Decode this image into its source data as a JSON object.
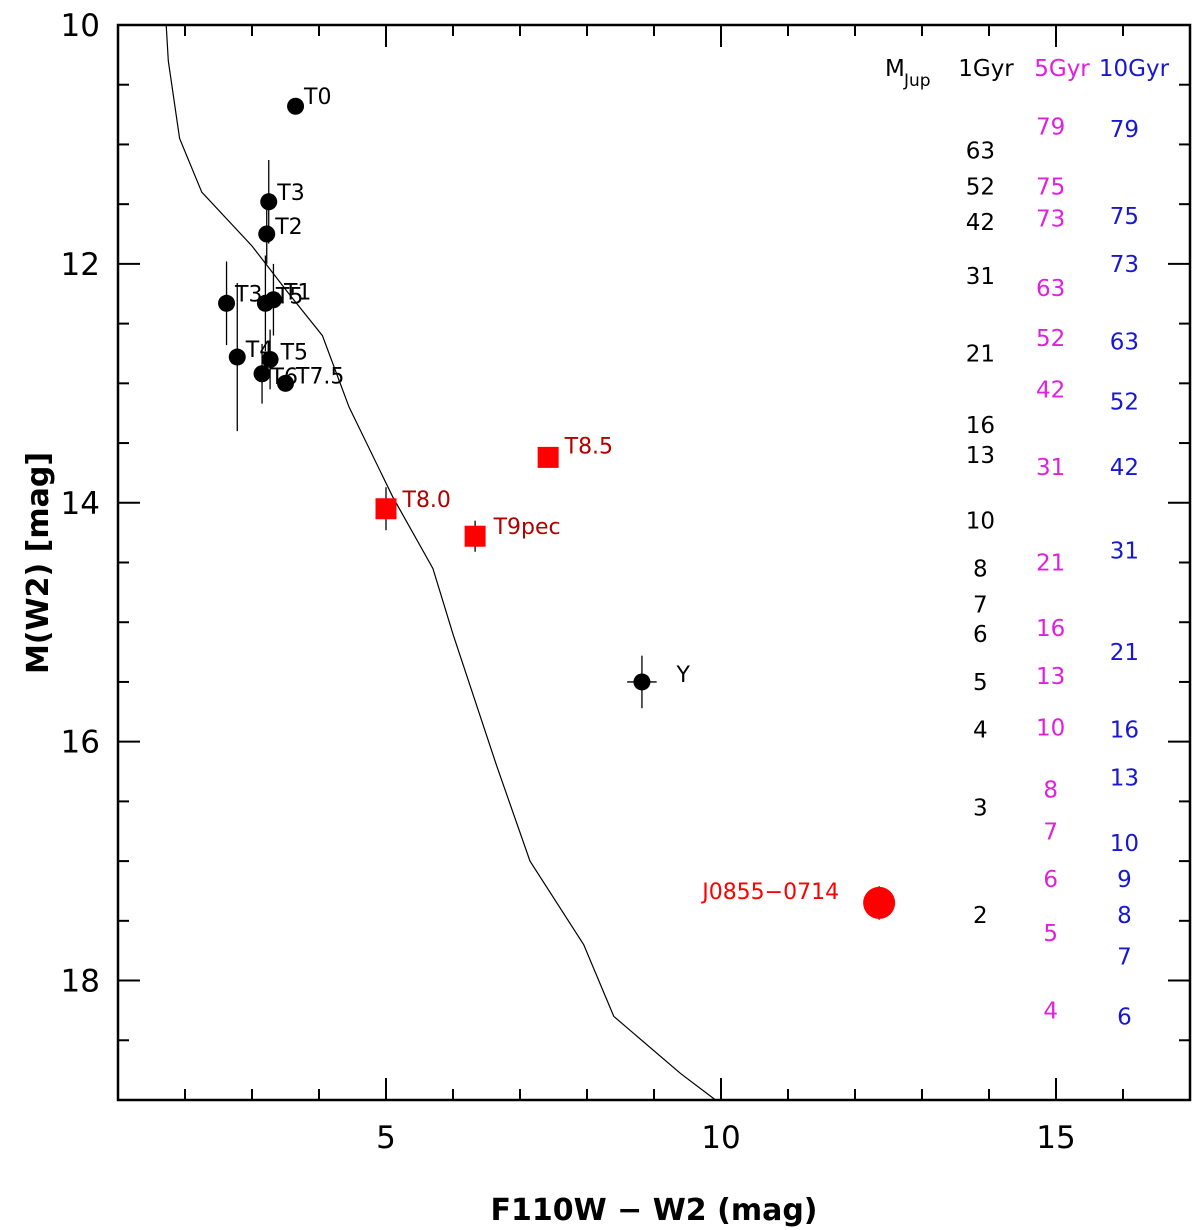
{
  "chart_data": {
    "type": "scatter",
    "xlabel": "F110W − W2 (mag)",
    "ylabel": "M(W2) [mag]",
    "xlim": [
      1.0,
      17.0
    ],
    "ylim": [
      19.0,
      10.0
    ],
    "y_inverted": true,
    "xticks": [
      5,
      10,
      15
    ],
    "yticks": [
      10,
      12,
      14,
      16,
      18
    ],
    "grid": false,
    "series": [
      {
        "marker": "circle",
        "color": "#000000",
        "points": [
          {
            "label": "T0",
            "x": 3.65,
            "y": 10.68,
            "yerr": 0
          },
          {
            "label": "T3",
            "x": 3.25,
            "y": 11.48,
            "yerr": 0.35
          },
          {
            "label": "T2",
            "x": 3.22,
            "y": 11.75,
            "yerr": 0.25
          },
          {
            "label": "T3",
            "x": 2.62,
            "y": 12.33,
            "yerr": 0.35
          },
          {
            "label": "T5",
            "x": 3.2,
            "y": 12.33,
            "yerr": 0.4
          },
          {
            "label": "T1",
            "x": 3.32,
            "y": 12.3,
            "yerr": 0.3
          },
          {
            "label": "T4",
            "x": 2.78,
            "y": 12.78,
            "yerr": 0.62
          },
          {
            "label": "T5",
            "x": 3.27,
            "y": 12.8,
            "yerr": 0.25
          },
          {
            "label": "T6",
            "x": 3.15,
            "y": 12.92,
            "yerr": 0.25
          },
          {
            "label": "T7.5",
            "x": 3.5,
            "y": 13.0,
            "yerr": 0
          },
          {
            "label": "Y",
            "x": 8.82,
            "y": 15.5,
            "yerr": 0.22,
            "xerr": 0.22
          }
        ]
      },
      {
        "marker": "square",
        "color": "#ff0000",
        "points": [
          {
            "label": "T8.0",
            "x": 5.0,
            "y": 14.05,
            "yerr": 0.18
          },
          {
            "label": "T8.5",
            "x": 7.42,
            "y": 13.62,
            "yerr": 0
          },
          {
            "label": "T9pec",
            "x": 6.33,
            "y": 14.28,
            "yerr": 0.13
          }
        ]
      },
      {
        "marker": "large-circle",
        "color": "#ff0000",
        "points": [
          {
            "label": "J0855−0714",
            "x": 12.36,
            "y": 17.35,
            "yerr": 0.14
          }
        ]
      }
    ],
    "model_curve": [
      {
        "x": 1.72,
        "y": 10.0
      },
      {
        "x": 1.75,
        "y": 10.3
      },
      {
        "x": 1.92,
        "y": 10.95
      },
      {
        "x": 2.25,
        "y": 11.4
      },
      {
        "x": 3.0,
        "y": 11.85
      },
      {
        "x": 3.55,
        "y": 12.25
      },
      {
        "x": 4.05,
        "y": 12.6
      },
      {
        "x": 4.45,
        "y": 13.2
      },
      {
        "x": 5.1,
        "y": 13.95
      },
      {
        "x": 5.7,
        "y": 14.55
      },
      {
        "x": 6.0,
        "y": 15.1
      },
      {
        "x": 6.65,
        "y": 16.2
      },
      {
        "x": 7.15,
        "y": 17.0
      },
      {
        "x": 7.95,
        "y": 17.7
      },
      {
        "x": 8.4,
        "y": 18.3
      },
      {
        "x": 9.4,
        "y": 18.78
      },
      {
        "x": 9.92,
        "y": 19.0
      }
    ],
    "mass_table": {
      "header_mjup": "M",
      "header_mjup_sub": "Jup",
      "columns": [
        {
          "label": "1Gyr",
          "color": "#000000",
          "x": 14.05,
          "entries": [
            {
              "mass": "63",
              "mag": 11.05
            },
            {
              "mass": "52",
              "mag": 11.35
            },
            {
              "mass": "42",
              "mag": 11.65
            },
            {
              "mass": "31",
              "mag": 12.1
            },
            {
              "mass": "21",
              "mag": 12.75
            },
            {
              "mass": "16",
              "mag": 13.35
            },
            {
              "mass": "13",
              "mag": 13.6
            },
            {
              "mass": "10",
              "mag": 14.15
            },
            {
              "mass": "8",
              "mag": 14.55
            },
            {
              "mass": "7",
              "mag": 14.85
            },
            {
              "mass": "6",
              "mag": 15.1
            },
            {
              "mass": "5",
              "mag": 15.5
            },
            {
              "mass": "4",
              "mag": 15.9
            },
            {
              "mass": "3",
              "mag": 16.55
            },
            {
              "mass": "2",
              "mag": 17.45
            }
          ]
        },
        {
          "label": "5Gyr",
          "color": "#e020e0",
          "x": 15.1,
          "entries": [
            {
              "mass": "79",
              "mag": 10.85
            },
            {
              "mass": "75",
              "mag": 11.35
            },
            {
              "mass": "73",
              "mag": 11.62
            },
            {
              "mass": "63",
              "mag": 12.2
            },
            {
              "mass": "52",
              "mag": 12.62
            },
            {
              "mass": "42",
              "mag": 13.05
            },
            {
              "mass": "31",
              "mag": 13.7
            },
            {
              "mass": "21",
              "mag": 14.5
            },
            {
              "mass": "16",
              "mag": 15.05
            },
            {
              "mass": "13",
              "mag": 15.45
            },
            {
              "mass": "10",
              "mag": 15.88
            },
            {
              "mass": "8",
              "mag": 16.4
            },
            {
              "mass": "7",
              "mag": 16.75
            },
            {
              "mass": "6",
              "mag": 17.15
            },
            {
              "mass": "5",
              "mag": 17.6
            },
            {
              "mass": "4",
              "mag": 18.25
            }
          ]
        },
        {
          "label": "10Gyr",
          "color": "#1818d0",
          "x": 16.2,
          "entries": [
            {
              "mass": "79",
              "mag": 10.87
            },
            {
              "mass": "75",
              "mag": 11.6
            },
            {
              "mass": "73",
              "mag": 12.0
            },
            {
              "mass": "63",
              "mag": 12.65
            },
            {
              "mass": "52",
              "mag": 13.15
            },
            {
              "mass": "42",
              "mag": 13.7
            },
            {
              "mass": "31",
              "mag": 14.4
            },
            {
              "mass": "21",
              "mag": 15.25
            },
            {
              "mass": "16",
              "mag": 15.9
            },
            {
              "mass": "13",
              "mag": 16.3
            },
            {
              "mass": "10",
              "mag": 16.85
            },
            {
              "mass": "9",
              "mag": 17.15
            },
            {
              "mass": "8",
              "mag": 17.45
            },
            {
              "mass": "7",
              "mag": 17.8
            },
            {
              "mass": "6",
              "mag": 18.3
            }
          ]
        }
      ]
    }
  }
}
